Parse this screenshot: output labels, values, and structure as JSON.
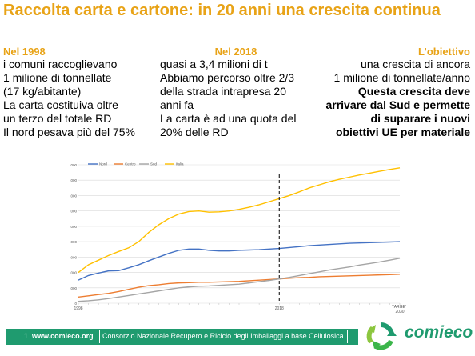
{
  "slide": {
    "title": "Raccolta carta e cartone: in 20 anni una crescita continua",
    "col1": {
      "heading": "Nel 1998",
      "lines": [
        "i comuni raccoglievano",
        "1 milione di tonnellate",
        "(17 kg/abitante)",
        "La carta costituiva oltre",
        "un terzo del totale RD",
        "Il nord pesava più del 75%"
      ]
    },
    "col2": {
      "heading": "Nel 2018",
      "lines": [
        "quasi a 3,4 milioni di t",
        "Abbiamo percorso oltre 2/3",
        "della strada intrapresa 20",
        "anni fa",
        "La carta è ad una quota del",
        "20% delle RD"
      ]
    },
    "col3": {
      "heading": "L’obiettivo",
      "lines": [
        "una crescita di ancora",
        "1 milione di tonnellate/anno"
      ],
      "bold_lines": [
        "Questa crescita deve",
        "arrivare dal Sud e permette",
        "di suparare i nuovi",
        "obiettivi UE per materiale"
      ]
    }
  },
  "chart_data": {
    "type": "line",
    "ylim": [
      0,
      4500000
    ],
    "yticks": [
      "0",
      "500.000",
      "1.000.000",
      "1.500.000",
      "2.000.000",
      "2.500.000",
      "3.000.000",
      "3.500.000",
      "4.000.000",
      "4.500.000"
    ],
    "ytick_values": [
      0,
      500000,
      1000000,
      1500000,
      2000000,
      2500000,
      3000000,
      3500000,
      4000000,
      4500000
    ],
    "xticks": [
      "1998",
      "2018",
      "TARGET",
      "2030"
    ],
    "x_target_label": "TARGET",
    "x_target_sub": "2030",
    "marker_year": 2018,
    "x": [
      1998,
      1999,
      2000,
      2001,
      2002,
      2003,
      2004,
      2005,
      2006,
      2007,
      2008,
      2009,
      2010,
      2011,
      2012,
      2013,
      2014,
      2015,
      2016,
      2017,
      2018,
      2019,
      2020,
      2021,
      2022,
      2023,
      2024,
      2025,
      2026,
      2027,
      2028,
      2029,
      2030
    ],
    "series": [
      {
        "name": "Nord",
        "color": "#4472c4",
        "values": [
          750000,
          900000,
          980000,
          1050000,
          1060000,
          1150000,
          1250000,
          1380000,
          1500000,
          1620000,
          1720000,
          1760000,
          1760000,
          1720000,
          1700000,
          1700000,
          1720000,
          1730000,
          1740000,
          1760000,
          1780000,
          1810000,
          1840000,
          1870000,
          1890000,
          1910000,
          1930000,
          1950000,
          1960000,
          1970000,
          1980000,
          1990000,
          2000000
        ]
      },
      {
        "name": "Centro",
        "color": "#ed7d31",
        "values": [
          200000,
          240000,
          280000,
          320000,
          380000,
          450000,
          520000,
          570000,
          600000,
          640000,
          660000,
          670000,
          680000,
          680000,
          690000,
          700000,
          710000,
          730000,
          750000,
          770000,
          790000,
          810000,
          830000,
          840000,
          860000,
          870000,
          880000,
          890000,
          900000,
          910000,
          920000,
          930000,
          940000
        ]
      },
      {
        "name": "Sud",
        "color": "#a5a5a5",
        "values": [
          60000,
          80000,
          110000,
          150000,
          200000,
          250000,
          300000,
          350000,
          400000,
          450000,
          500000,
          530000,
          550000,
          560000,
          580000,
          600000,
          620000,
          660000,
          700000,
          740000,
          790000,
          840000,
          900000,
          960000,
          1020000,
          1080000,
          1130000,
          1180000,
          1240000,
          1290000,
          1340000,
          1400000,
          1460000
        ]
      },
      {
        "name": "Italia",
        "color": "#ffc000",
        "values": [
          1000000,
          1250000,
          1400000,
          1550000,
          1680000,
          1800000,
          2000000,
          2300000,
          2550000,
          2750000,
          2900000,
          2980000,
          3000000,
          2960000,
          2970000,
          3000000,
          3050000,
          3120000,
          3200000,
          3300000,
          3400000,
          3500000,
          3620000,
          3750000,
          3850000,
          3950000,
          4030000,
          4100000,
          4170000,
          4230000,
          4290000,
          4350000,
          4400000
        ]
      }
    ]
  },
  "footer": {
    "page_number": "1",
    "url": "www.comieco.org",
    "text": "Consorzio Nazionale Recupero e Riciclo degli Imballaggi a base Cellulosica",
    "logo_text": "comieco",
    "accent": "#1f9b6f"
  }
}
